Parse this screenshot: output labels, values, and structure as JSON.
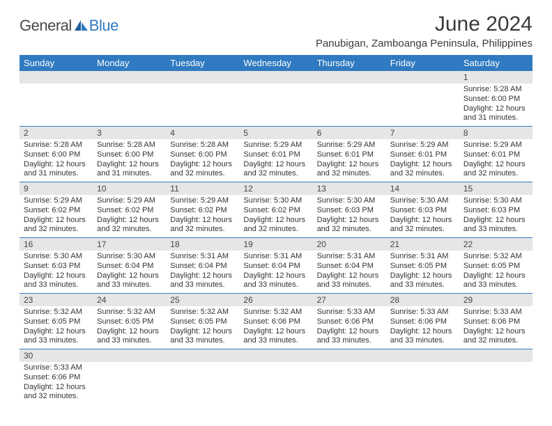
{
  "logo": {
    "general": "General",
    "blue": "Blue"
  },
  "title": "June 2024",
  "location": "Panubigan, Zamboanga Peninsula, Philippines",
  "colors": {
    "header_bg": "#2f7ac0",
    "header_text": "#ffffff",
    "daynum_bg": "#e6e6e6",
    "grid_line": "#2f7ac0",
    "body_text": "#333333",
    "logo_gray": "#4a4a4a",
    "logo_blue": "#2f7ac0"
  },
  "day_headers": [
    "Sunday",
    "Monday",
    "Tuesday",
    "Wednesday",
    "Thursday",
    "Friday",
    "Saturday"
  ],
  "weeks": [
    [
      {
        "n": "",
        "l1": "",
        "l2": "",
        "l3": "",
        "l4": ""
      },
      {
        "n": "",
        "l1": "",
        "l2": "",
        "l3": "",
        "l4": ""
      },
      {
        "n": "",
        "l1": "",
        "l2": "",
        "l3": "",
        "l4": ""
      },
      {
        "n": "",
        "l1": "",
        "l2": "",
        "l3": "",
        "l4": ""
      },
      {
        "n": "",
        "l1": "",
        "l2": "",
        "l3": "",
        "l4": ""
      },
      {
        "n": "",
        "l1": "",
        "l2": "",
        "l3": "",
        "l4": ""
      },
      {
        "n": "1",
        "l1": "Sunrise: 5:28 AM",
        "l2": "Sunset: 6:00 PM",
        "l3": "Daylight: 12 hours",
        "l4": "and 31 minutes."
      }
    ],
    [
      {
        "n": "2",
        "l1": "Sunrise: 5:28 AM",
        "l2": "Sunset: 6:00 PM",
        "l3": "Daylight: 12 hours",
        "l4": "and 31 minutes."
      },
      {
        "n": "3",
        "l1": "Sunrise: 5:28 AM",
        "l2": "Sunset: 6:00 PM",
        "l3": "Daylight: 12 hours",
        "l4": "and 31 minutes."
      },
      {
        "n": "4",
        "l1": "Sunrise: 5:28 AM",
        "l2": "Sunset: 6:00 PM",
        "l3": "Daylight: 12 hours",
        "l4": "and 32 minutes."
      },
      {
        "n": "5",
        "l1": "Sunrise: 5:29 AM",
        "l2": "Sunset: 6:01 PM",
        "l3": "Daylight: 12 hours",
        "l4": "and 32 minutes."
      },
      {
        "n": "6",
        "l1": "Sunrise: 5:29 AM",
        "l2": "Sunset: 6:01 PM",
        "l3": "Daylight: 12 hours",
        "l4": "and 32 minutes."
      },
      {
        "n": "7",
        "l1": "Sunrise: 5:29 AM",
        "l2": "Sunset: 6:01 PM",
        "l3": "Daylight: 12 hours",
        "l4": "and 32 minutes."
      },
      {
        "n": "8",
        "l1": "Sunrise: 5:29 AM",
        "l2": "Sunset: 6:01 PM",
        "l3": "Daylight: 12 hours",
        "l4": "and 32 minutes."
      }
    ],
    [
      {
        "n": "9",
        "l1": "Sunrise: 5:29 AM",
        "l2": "Sunset: 6:02 PM",
        "l3": "Daylight: 12 hours",
        "l4": "and 32 minutes."
      },
      {
        "n": "10",
        "l1": "Sunrise: 5:29 AM",
        "l2": "Sunset: 6:02 PM",
        "l3": "Daylight: 12 hours",
        "l4": "and 32 minutes."
      },
      {
        "n": "11",
        "l1": "Sunrise: 5:29 AM",
        "l2": "Sunset: 6:02 PM",
        "l3": "Daylight: 12 hours",
        "l4": "and 32 minutes."
      },
      {
        "n": "12",
        "l1": "Sunrise: 5:30 AM",
        "l2": "Sunset: 6:02 PM",
        "l3": "Daylight: 12 hours",
        "l4": "and 32 minutes."
      },
      {
        "n": "13",
        "l1": "Sunrise: 5:30 AM",
        "l2": "Sunset: 6:03 PM",
        "l3": "Daylight: 12 hours",
        "l4": "and 32 minutes."
      },
      {
        "n": "14",
        "l1": "Sunrise: 5:30 AM",
        "l2": "Sunset: 6:03 PM",
        "l3": "Daylight: 12 hours",
        "l4": "and 32 minutes."
      },
      {
        "n": "15",
        "l1": "Sunrise: 5:30 AM",
        "l2": "Sunset: 6:03 PM",
        "l3": "Daylight: 12 hours",
        "l4": "and 33 minutes."
      }
    ],
    [
      {
        "n": "16",
        "l1": "Sunrise: 5:30 AM",
        "l2": "Sunset: 6:03 PM",
        "l3": "Daylight: 12 hours",
        "l4": "and 33 minutes."
      },
      {
        "n": "17",
        "l1": "Sunrise: 5:30 AM",
        "l2": "Sunset: 6:04 PM",
        "l3": "Daylight: 12 hours",
        "l4": "and 33 minutes."
      },
      {
        "n": "18",
        "l1": "Sunrise: 5:31 AM",
        "l2": "Sunset: 6:04 PM",
        "l3": "Daylight: 12 hours",
        "l4": "and 33 minutes."
      },
      {
        "n": "19",
        "l1": "Sunrise: 5:31 AM",
        "l2": "Sunset: 6:04 PM",
        "l3": "Daylight: 12 hours",
        "l4": "and 33 minutes."
      },
      {
        "n": "20",
        "l1": "Sunrise: 5:31 AM",
        "l2": "Sunset: 6:04 PM",
        "l3": "Daylight: 12 hours",
        "l4": "and 33 minutes."
      },
      {
        "n": "21",
        "l1": "Sunrise: 5:31 AM",
        "l2": "Sunset: 6:05 PM",
        "l3": "Daylight: 12 hours",
        "l4": "and 33 minutes."
      },
      {
        "n": "22",
        "l1": "Sunrise: 5:32 AM",
        "l2": "Sunset: 6:05 PM",
        "l3": "Daylight: 12 hours",
        "l4": "and 33 minutes."
      }
    ],
    [
      {
        "n": "23",
        "l1": "Sunrise: 5:32 AM",
        "l2": "Sunset: 6:05 PM",
        "l3": "Daylight: 12 hours",
        "l4": "and 33 minutes."
      },
      {
        "n": "24",
        "l1": "Sunrise: 5:32 AM",
        "l2": "Sunset: 6:05 PM",
        "l3": "Daylight: 12 hours",
        "l4": "and 33 minutes."
      },
      {
        "n": "25",
        "l1": "Sunrise: 5:32 AM",
        "l2": "Sunset: 6:05 PM",
        "l3": "Daylight: 12 hours",
        "l4": "and 33 minutes."
      },
      {
        "n": "26",
        "l1": "Sunrise: 5:32 AM",
        "l2": "Sunset: 6:06 PM",
        "l3": "Daylight: 12 hours",
        "l4": "and 33 minutes."
      },
      {
        "n": "27",
        "l1": "Sunrise: 5:33 AM",
        "l2": "Sunset: 6:06 PM",
        "l3": "Daylight: 12 hours",
        "l4": "and 33 minutes."
      },
      {
        "n": "28",
        "l1": "Sunrise: 5:33 AM",
        "l2": "Sunset: 6:06 PM",
        "l3": "Daylight: 12 hours",
        "l4": "and 33 minutes."
      },
      {
        "n": "29",
        "l1": "Sunrise: 5:33 AM",
        "l2": "Sunset: 6:06 PM",
        "l3": "Daylight: 12 hours",
        "l4": "and 32 minutes."
      }
    ],
    [
      {
        "n": "30",
        "l1": "Sunrise: 5:33 AM",
        "l2": "Sunset: 6:06 PM",
        "l3": "Daylight: 12 hours",
        "l4": "and 32 minutes."
      },
      {
        "n": "",
        "l1": "",
        "l2": "",
        "l3": "",
        "l4": ""
      },
      {
        "n": "",
        "l1": "",
        "l2": "",
        "l3": "",
        "l4": ""
      },
      {
        "n": "",
        "l1": "",
        "l2": "",
        "l3": "",
        "l4": ""
      },
      {
        "n": "",
        "l1": "",
        "l2": "",
        "l3": "",
        "l4": ""
      },
      {
        "n": "",
        "l1": "",
        "l2": "",
        "l3": "",
        "l4": ""
      },
      {
        "n": "",
        "l1": "",
        "l2": "",
        "l3": "",
        "l4": ""
      }
    ]
  ]
}
